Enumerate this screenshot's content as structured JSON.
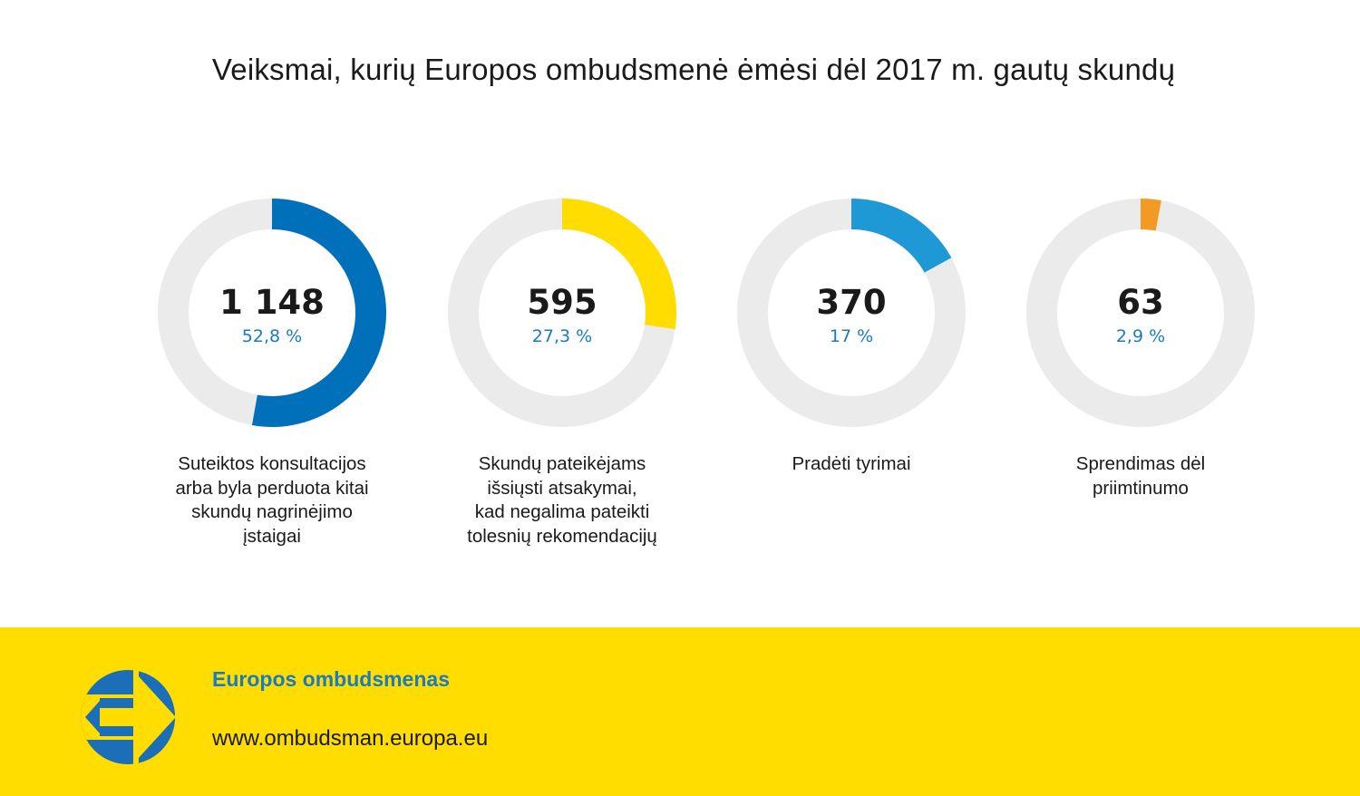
{
  "title": "Veiksmai, kurių Europos ombudsmenė ėmėsi dėl 2017 m. gautų skundų",
  "colors": {
    "track": "#ebebeb",
    "percent_text": "#1a7ac2",
    "footer_bg": "#ffdd00",
    "logo_blue": "#1a6fb8"
  },
  "chart_data": {
    "type": "pie",
    "title": "Veiksmai, kurių Europos ombudsmenė ėmėsi dėl 2017 m. gautų skundų",
    "series": [
      {
        "value_label": "1 148",
        "value": 1148,
        "percent_label": "52,8 %",
        "percent": 52.8,
        "color": "#0070bb",
        "label": "Suteiktos konsultacijos\narba byla perduota kitai\nskundų nagrinėjimo\nįstaigai"
      },
      {
        "value_label": "595",
        "value": 595,
        "percent_label": "27,3 %",
        "percent": 27.3,
        "color": "#ffdd00",
        "label": "Skundų pateikėjams\nišsiųsti atsakymai,\nkad negalima pateikti\ntolesnių rekomendacijų"
      },
      {
        "value_label": "370",
        "value": 370,
        "percent_label": "17 %",
        "percent": 17,
        "color": "#1f99d6",
        "label": "Pradėti tyrimai"
      },
      {
        "value_label": "63",
        "value": 63,
        "percent_label": "2,9 %",
        "percent": 2.9,
        "color": "#f39a24",
        "label": "Sprendimas dėl\npriimtinumo"
      }
    ]
  },
  "footer": {
    "org_name": "Europos ombudsmenas",
    "url": "www.ombudsman.europa.eu",
    "logo_icon": "european-ombudsman-logo-icon"
  }
}
